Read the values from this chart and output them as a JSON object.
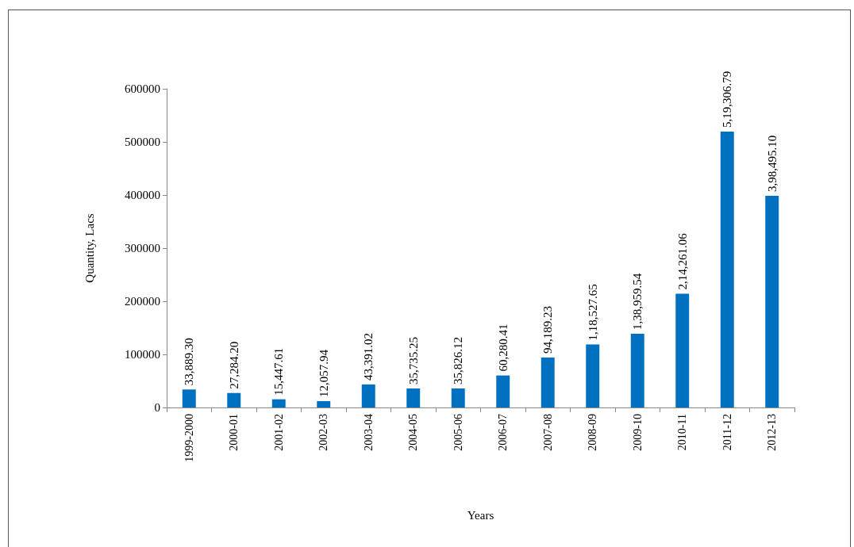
{
  "chart_data": {
    "type": "bar",
    "xlabel": "Years",
    "ylabel": "Quantity, Lacs",
    "categories": [
      "1999-2000",
      "2000-01",
      "2001-02",
      "2002-03",
      "2003-04",
      "2004-05",
      "2005-06",
      "2006-07",
      "2007-08",
      "2008-09",
      "2009-10",
      "2010-11",
      "2011-12",
      "2012-13"
    ],
    "values": [
      33889.3,
      27284.2,
      15447.61,
      12057.94,
      43391.02,
      35735.25,
      35826.12,
      60280.41,
      94189.23,
      118527.65,
      138959.54,
      214261.06,
      519306.79,
      398495.1
    ],
    "value_labels": [
      "33,889.30",
      "27,284.20",
      "15,447.61",
      "12,057.94",
      "43,391.02",
      "35,735.25",
      "35,826.12",
      "60,280.41",
      "94,189.23",
      "1,18,527.65",
      "1,38,959.54",
      "2,14,261.06",
      "5,19,306.79",
      "3,98,495.10"
    ],
    "color": "#0070c0",
    "ylim": [
      0,
      600000
    ],
    "yticks": [
      0,
      100000,
      200000,
      300000,
      400000,
      500000,
      600000
    ],
    "grid": false
  }
}
